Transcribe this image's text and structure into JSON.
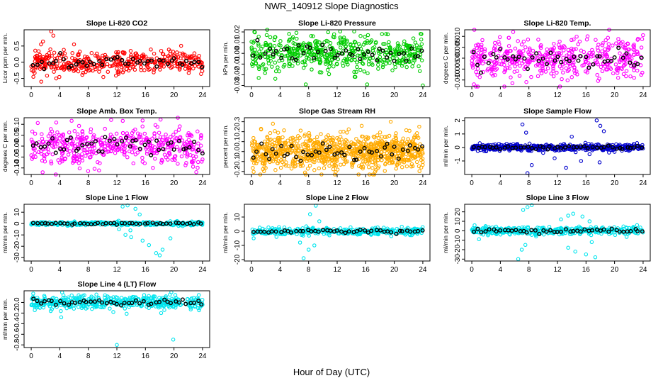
{
  "figure": {
    "title": "NWR_140912  Slope Diagnostics",
    "xlabel": "Hour of Day (UTC)"
  },
  "colors": {
    "main": "#000000",
    "overlay": "#000000"
  },
  "chart_data": [
    {
      "type": "scatter",
      "title": "Slope Li-820 CO2",
      "ylabel": "Licor ppm per min.",
      "ylim": [
        -0.75,
        1.0
      ],
      "yticks": [
        -0.5,
        0,
        0.5
      ],
      "ytick_labels": [
        "-0.5",
        "0.0",
        "0.5"
      ],
      "xlim": [
        -1,
        25
      ],
      "xticks": [
        0,
        4,
        8,
        12,
        16,
        20,
        24
      ],
      "color": "#ff0000",
      "spread": 0.18,
      "n": 420,
      "seed": 11,
      "outliers": [
        [
          2.8,
          0.95
        ],
        [
          3.1,
          0.82
        ],
        [
          1.4,
          -0.6
        ],
        [
          0.3,
          -0.45
        ],
        [
          3.5,
          -0.5
        ],
        [
          6,
          0.55
        ]
      ]
    },
    {
      "type": "scatter",
      "title": "Slope Li-820 Pressure",
      "ylabel": "kPa per min.",
      "ylim": [
        -0.031,
        0.022
      ],
      "yticks": [
        -0.03,
        -0.02,
        -0.01,
        0,
        0.01,
        0.02
      ],
      "ytick_labels": [
        "-0.03",
        "-0.02",
        "-0.01",
        "0.00",
        "0.01",
        "0.02"
      ],
      "xlim": [
        -1,
        25
      ],
      "xticks": [
        0,
        4,
        8,
        12,
        16,
        20,
        24
      ],
      "color": "#00cc00",
      "spread": 0.008,
      "n": 520,
      "seed": 22,
      "outliers": [
        [
          1,
          -0.023
        ],
        [
          7.6,
          -0.029
        ],
        [
          16.2,
          -0.029
        ],
        [
          24,
          -0.03
        ],
        [
          0.4,
          0.02
        ],
        [
          23.8,
          0.018
        ]
      ]
    },
    {
      "type": "scatter",
      "title": "Slope Li-820 Temp.",
      "ylabel": "degrees C per min.",
      "ylim": [
        -0.013,
        0.013
      ],
      "yticks": [
        -0.01,
        -0.005,
        0,
        0.005,
        0.01
      ],
      "ytick_labels": [
        "-0.010",
        "-0.005",
        "0.000",
        "0.005",
        "0.010"
      ],
      "xlim": [
        -1,
        25
      ],
      "xticks": [
        0,
        4,
        8,
        12,
        16,
        20,
        24
      ],
      "color": "#ff00ff",
      "spread": 0.0045,
      "n": 460,
      "seed": 33,
      "outliers": [
        [
          0.3,
          -0.012
        ],
        [
          5.8,
          0.012
        ],
        [
          20.5,
          -0.009
        ]
      ]
    },
    {
      "type": "scatter",
      "title": "Slope Amb. Box Temp.",
      "ylabel": "degrees C per min.",
      "ylim": [
        -0.13,
        0.13
      ],
      "yticks": [
        -0.1,
        -0.05,
        0,
        0.05,
        0.1
      ],
      "ytick_labels": [
        "-0.10",
        "-0.05",
        "0.00",
        "0.05",
        "0.10"
      ],
      "xlim": [
        -1,
        25
      ],
      "xticks": [
        0,
        4,
        8,
        12,
        16,
        20,
        24
      ],
      "color": "#ff00ff",
      "spread": 0.045,
      "n": 460,
      "seed": 44,
      "outliers": [
        [
          1.6,
          -0.12
        ],
        [
          11.2,
          0.12
        ]
      ]
    },
    {
      "type": "scatter",
      "title": "Slope Gas Stream RH",
      "ylabel": "percent per min.",
      "ylim": [
        -0.23,
        0.34
      ],
      "yticks": [
        -0.2,
        -0.1,
        0,
        0.1,
        0.2,
        0.3
      ],
      "ytick_labels": [
        "-0.2",
        "-0.1",
        "0.0",
        "0.1",
        "0.2",
        "0.3"
      ],
      "xlim": [
        -1,
        25
      ],
      "xticks": [
        0,
        4,
        8,
        12,
        16,
        20,
        24
      ],
      "color": "#ffaa00",
      "spread": 0.09,
      "n": 900,
      "seed": 55,
      "outliers": [
        [
          3,
          0.28
        ],
        [
          19.5,
          0.3
        ],
        [
          23.5,
          0.25
        ],
        [
          17,
          -0.23
        ]
      ]
    },
    {
      "type": "scatter",
      "title": "Slope Sample Flow",
      "ylabel": "ml/min per min.",
      "ylim": [
        -2.0,
        2.2
      ],
      "yticks": [
        -1,
        0,
        1,
        2
      ],
      "ytick_labels": [
        "-1",
        "0",
        "1",
        "2"
      ],
      "xlim": [
        -1,
        25
      ],
      "xticks": [
        0,
        4,
        8,
        12,
        16,
        20,
        24
      ],
      "color": "#0000cc",
      "spread": 0.12,
      "n": 500,
      "seed": 66,
      "outliers": [
        [
          7.1,
          1.7
        ],
        [
          7.6,
          1.1
        ],
        [
          7.8,
          -1.9
        ],
        [
          8.4,
          -1.3
        ],
        [
          11.6,
          -0.8
        ],
        [
          13.2,
          -1.5
        ],
        [
          15.3,
          -1.0
        ],
        [
          17.5,
          2.0
        ],
        [
          18,
          1.6
        ],
        [
          17.9,
          -1.1
        ],
        [
          18.5,
          1.2
        ],
        [
          16.5,
          -0.5
        ],
        [
          14,
          0.8
        ],
        [
          10,
          -0.4
        ]
      ]
    },
    {
      "type": "scatter",
      "title": "Slope Line 1 Flow",
      "ylabel": "ml/min per min.",
      "ylim": [
        -33,
        17
      ],
      "yticks": [
        -30,
        -20,
        -10,
        0,
        10
      ],
      "ytick_labels": [
        "-30",
        "-20",
        "-10",
        "0",
        "10"
      ],
      "xlim": [
        -1,
        25
      ],
      "xticks": [
        0,
        4,
        8,
        12,
        16,
        20,
        24
      ],
      "color": "#00e5ee",
      "spread": 0.8,
      "n": 400,
      "seed": 77,
      "outliers": [
        [
          12.8,
          15
        ],
        [
          13.5,
          16
        ],
        [
          14.6,
          13
        ],
        [
          15.2,
          8
        ],
        [
          13.2,
          -10
        ],
        [
          14,
          -12
        ],
        [
          15.6,
          -15
        ],
        [
          16.5,
          -19
        ],
        [
          17.5,
          -26
        ],
        [
          18,
          -28
        ],
        [
          18.4,
          -23
        ],
        [
          19.5,
          -13
        ],
        [
          12.3,
          -5
        ],
        [
          13.9,
          -6
        ]
      ]
    },
    {
      "type": "scatter",
      "title": "Slope Line 2 Flow",
      "ylabel": "ml/min per min.",
      "ylim": [
        -21,
        19
      ],
      "yticks": [
        -20,
        -10,
        0,
        10
      ],
      "ytick_labels": [
        "-20",
        "-10",
        "0",
        "10"
      ],
      "xlim": [
        -1,
        25
      ],
      "xticks": [
        0,
        4,
        8,
        12,
        16,
        20,
        24
      ],
      "color": "#00e5ee",
      "spread": 1.2,
      "n": 400,
      "seed": 88,
      "outliers": [
        [
          8.2,
          12
        ],
        [
          9,
          18
        ],
        [
          8,
          -13
        ],
        [
          7.3,
          -19
        ],
        [
          6.8,
          -8
        ],
        [
          8.8,
          -10
        ],
        [
          0.3,
          -5
        ],
        [
          3.5,
          -4
        ],
        [
          9.5,
          7
        ]
      ]
    },
    {
      "type": "scatter",
      "title": "Slope Line 3 Flow",
      "ylabel": "ml/min per min.",
      "ylim": [
        -32,
        28
      ],
      "yticks": [
        -30,
        -20,
        -10,
        0,
        10,
        20
      ],
      "ytick_labels": [
        "-30",
        "-20",
        "-10",
        "0",
        "10",
        "20"
      ],
      "xlim": [
        -1,
        25
      ],
      "xticks": [
        0,
        4,
        8,
        12,
        16,
        20,
        24
      ],
      "color": "#00e5ee",
      "spread": 2.0,
      "n": 420,
      "seed": 99,
      "outliers": [
        [
          7.2,
          22
        ],
        [
          7.8,
          25
        ],
        [
          8.4,
          27
        ],
        [
          7,
          -20
        ],
        [
          7.5,
          -15
        ],
        [
          12.5,
          12
        ],
        [
          13.5,
          16
        ],
        [
          14.2,
          18
        ],
        [
          15.5,
          15
        ],
        [
          16.5,
          10
        ],
        [
          13.5,
          -18
        ],
        [
          14.5,
          -22
        ],
        [
          16,
          -25
        ],
        [
          17.3,
          -28
        ],
        [
          16.8,
          -12
        ],
        [
          1,
          -9
        ],
        [
          6.5,
          -30
        ],
        [
          9,
          -6
        ]
      ]
    },
    {
      "type": "scatter",
      "title": "Slope Line 4 (LT) Flow",
      "ylabel": "ml/min per min.",
      "ylim": [
        -0.85,
        0.22
      ],
      "yticks": [
        -0.8,
        -0.6,
        -0.4,
        -0.2,
        0
      ],
      "ytick_labels": [
        "-0.8",
        "-0.6",
        "-0.4",
        "-0.2",
        "0.0"
      ],
      "xlim": [
        -1,
        25
      ],
      "xticks": [
        0,
        4,
        8,
        12,
        16,
        20,
        24
      ],
      "color": "#00e5ee",
      "spread": 0.06,
      "n": 480,
      "seed": 111,
      "outliers": [
        [
          12,
          -0.8
        ],
        [
          19.9,
          -0.7
        ],
        [
          4.2,
          -0.28
        ],
        [
          11.5,
          -0.18
        ],
        [
          18.2,
          -0.2
        ]
      ]
    }
  ]
}
